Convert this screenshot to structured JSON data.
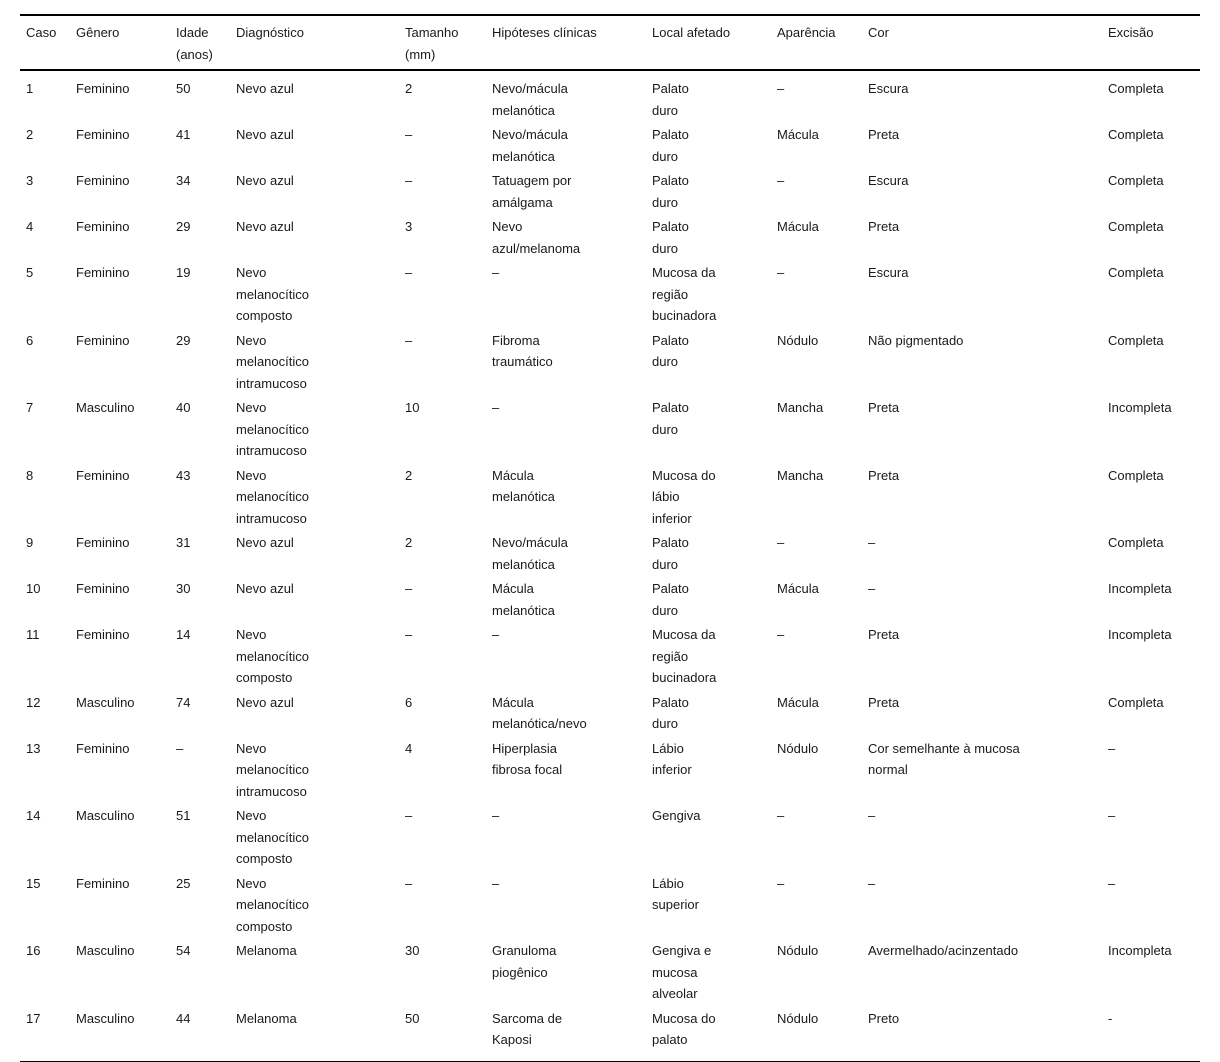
{
  "table": {
    "columns": [
      "Caso",
      "Gênero",
      "Idade\n(anos)",
      "Diagnóstico",
      "Tamanho\n(mm)",
      "Hipóteses clínicas",
      "Local afetado",
      "Aparência",
      "Cor",
      "Excisão"
    ],
    "rows": [
      [
        "1",
        "Feminino",
        "50",
        "Nevo azul",
        "2",
        "Nevo/mácula\nmelanótica",
        "Palato\nduro",
        "–",
        "Escura",
        "Completa"
      ],
      [
        "2",
        "Feminino",
        "41",
        "Nevo azul",
        "–",
        "Nevo/mácula\nmelanótica",
        "Palato\nduro",
        "Mácula",
        "Preta",
        "Completa"
      ],
      [
        "3",
        "Feminino",
        "34",
        "Nevo azul",
        "–",
        "Tatuagem por\namálgama",
        "Palato\nduro",
        "–",
        "Escura",
        "Completa"
      ],
      [
        "4",
        "Feminino",
        "29",
        "Nevo azul",
        "3",
        "Nevo\nazul/melanoma",
        "Palato\nduro",
        "Mácula",
        "Preta",
        "Completa"
      ],
      [
        "5",
        "Feminino",
        "19",
        "Nevo\nmelanocítico\ncomposto",
        "–",
        "–",
        "Mucosa da\nregião\nbucinadora",
        "–",
        "Escura",
        "Completa"
      ],
      [
        "6",
        "Feminino",
        "29",
        "Nevo\nmelanocítico\nintramucoso",
        "–",
        "Fibroma\ntraumático",
        "Palato\nduro",
        "Nódulo",
        "Não pigmentado",
        "Completa"
      ],
      [
        "7",
        "Masculino",
        "40",
        "Nevo\nmelanocítico\nintramucoso",
        "10",
        "–",
        "Palato\nduro",
        "Mancha",
        "Preta",
        "Incompleta"
      ],
      [
        "8",
        "Feminino",
        "43",
        "Nevo\nmelanocítico\nintramucoso",
        "2",
        "Mácula\nmelanótica",
        "Mucosa do\nlábio\ninferior",
        "Mancha",
        "Preta",
        "Completa"
      ],
      [
        "9",
        "Feminino",
        "31",
        "Nevo azul",
        "2",
        "Nevo/mácula\nmelanótica",
        "Palato\nduro",
        "–",
        "–",
        "Completa"
      ],
      [
        "10",
        "Feminino",
        "30",
        "Nevo azul",
        "–",
        "Mácula\nmelanótica",
        "Palato\nduro",
        "Mácula",
        "–",
        "Incompleta"
      ],
      [
        "11",
        "Feminino",
        "14",
        "Nevo\nmelanocítico\ncomposto",
        "–",
        "–",
        "Mucosa da\nregião\nbucinadora",
        "–",
        "Preta",
        "Incompleta"
      ],
      [
        "12",
        "Masculino",
        "74",
        "Nevo azul",
        "6",
        "Mácula\nmelanótica/nevo",
        "Palato\nduro",
        "Mácula",
        "Preta",
        "Completa"
      ],
      [
        "13",
        "Feminino",
        "–",
        "Nevo\nmelanocítico\nintramucoso",
        "4",
        "Hiperplasia\nfibrosa focal",
        "Lábio\ninferior",
        "Nódulo",
        "Cor semelhante à mucosa\nnormal",
        "–"
      ],
      [
        "14",
        "Masculino",
        "51",
        "Nevo\nmelanocítico\ncomposto",
        "–",
        "–",
        "Gengiva",
        "–",
        "–",
        "–"
      ],
      [
        "15",
        "Feminino",
        "25",
        "Nevo\nmelanocítico\ncomposto",
        "–",
        "–",
        "Lábio\nsuperior",
        "–",
        "–",
        "–"
      ],
      [
        "16",
        "Masculino",
        "54",
        "Melanoma",
        "30",
        "Granuloma\npiogênico",
        "Gengiva e\nmucosa\nalveolar",
        "Nódulo",
        "Avermelhado/acinzentado",
        "Incompleta"
      ],
      [
        "17",
        "Masculino",
        "44",
        "Melanoma",
        "50",
        "Sarcoma de\nKaposi",
        "Mucosa do\npalato",
        "Nódulo",
        "Preto",
        "-"
      ]
    ]
  }
}
